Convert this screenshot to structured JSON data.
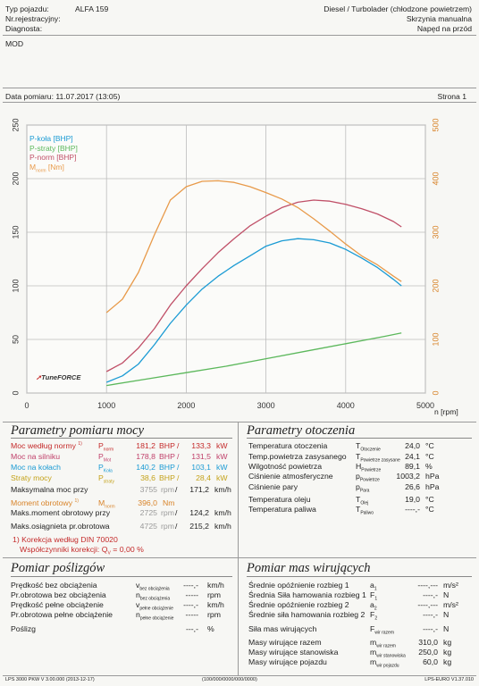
{
  "header": {
    "vehicle_type_label": "Typ pojazdu:",
    "vehicle_type": "ALFA 159",
    "registration_label": "Nr.rejestracyjny:",
    "diagnosis_label": "Diagnosta:",
    "engine": "Diesel / Turbolader (chłodzone powietrzem)",
    "gearbox": "Skrzynia manualna",
    "drive": "Napęd na przód",
    "note": "MOD",
    "date_label": "Data pomiaru: 11.07.2017 (13:05)",
    "page_label": "Strona 1"
  },
  "chart_data": {
    "type": "line",
    "x_unit_label": "n [rpm]",
    "xlim": [
      0,
      5000
    ],
    "x_ticks": [
      "0",
      "1000",
      "2000",
      "3000",
      "4000",
      "5000"
    ],
    "y_left_lim": [
      0,
      250
    ],
    "y_left_ticks": [
      "0",
      "50",
      "100",
      "150",
      "200",
      "250"
    ],
    "y_right_lim": [
      0,
      500
    ],
    "y_right_ticks": [
      "0",
      "100",
      "200",
      "300",
      "400",
      "500"
    ],
    "grid": true,
    "legend_position": "top-left",
    "brand": "TuneFORCE",
    "series": [
      {
        "name": "P-koła [BHP]",
        "axis": "left",
        "color": "#1b9bd4",
        "x": [
          1000,
          1200,
          1400,
          1600,
          1800,
          2000,
          2200,
          2400,
          2600,
          2800,
          3000,
          3200,
          3400,
          3600,
          3800,
          4000,
          4200,
          4400,
          4600,
          4700
        ],
        "y": [
          10,
          16,
          27,
          45,
          65,
          82,
          97,
          109,
          119,
          128,
          137,
          142,
          144,
          143,
          140,
          134,
          126,
          117,
          106,
          100
        ]
      },
      {
        "name": "P-straty [BHP]",
        "axis": "left",
        "color": "#5cb85c",
        "x": [
          1000,
          1500,
          2000,
          2500,
          3000,
          3500,
          4000,
          4500,
          4700
        ],
        "y": [
          7,
          13,
          19,
          25,
          32,
          39,
          46,
          53,
          56
        ]
      },
      {
        "name": "P-norm [BHP]",
        "axis": "left",
        "color": "#c05068",
        "x": [
          1000,
          1200,
          1400,
          1600,
          1800,
          2000,
          2200,
          2400,
          2600,
          2800,
          3000,
          3200,
          3400,
          3600,
          3800,
          4000,
          4200,
          4400,
          4600,
          4700
        ],
        "y": [
          20,
          28,
          42,
          60,
          82,
          100,
          116,
          131,
          144,
          156,
          165,
          173,
          178,
          180,
          179,
          176,
          172,
          167,
          160,
          155
        ]
      },
      {
        "name": "M",
        "name_sub": "norm",
        "name_unit": "[Nm]",
        "axis": "right",
        "color": "#e89a4a",
        "x": [
          1000,
          1200,
          1400,
          1600,
          1800,
          2000,
          2200,
          2400,
          2600,
          2800,
          3000,
          3200,
          3400,
          3600,
          3800,
          4000,
          4200,
          4400,
          4600,
          4700
        ],
        "y": [
          150,
          175,
          225,
          295,
          360,
          385,
          395,
          396,
          393,
          385,
          374,
          362,
          346,
          325,
          302,
          278,
          256,
          239,
          218,
          208
        ]
      }
    ]
  },
  "params_moc": {
    "title": "Parametry pomiaru mocy",
    "rows": [
      {
        "label": "Moc według normy",
        "sup": "1)",
        "sym": "P",
        "sub": "norm",
        "v1": "181,2",
        "u1": "BHP",
        "v2": "133,3",
        "u2": "kW",
        "color": "red"
      },
      {
        "label": "Moc na silniku",
        "sym": "P",
        "sub": "Mot",
        "v1": "178,8",
        "u1": "BHP",
        "v2": "131,5",
        "u2": "kW",
        "color": "pink"
      },
      {
        "label": "Moc na kołach",
        "sym": "P",
        "sub": "Koła",
        "v1": "140,2",
        "u1": "BHP",
        "v2": "103,1",
        "u2": "kW",
        "color": "blue"
      },
      {
        "label": "Straty mocy",
        "sym": "P",
        "sub": "straty",
        "v1": "38,6",
        "u1": "BHP",
        "v2": "28,4",
        "u2": "kW",
        "color": "gold"
      }
    ],
    "max_speed_label": "Maksymalna moc przy",
    "max_speed_rpm": "3755",
    "max_speed_rpm_unit": "rpm",
    "max_speed_kmh": "171,2",
    "max_speed_kmh_unit": "km/h",
    "torque_label": "Moment obrotowy",
    "torque_sup": "1)",
    "torque_sym": "M",
    "torque_sub": "norm",
    "torque_value": "396,0",
    "torque_unit": "Nm",
    "torque_speed_label": "Maks.moment obrotowy przy",
    "torque_speed_rpm": "2725",
    "torque_speed_kmh": "124,2",
    "maxv_label": "Maks.osiągnieta pr.obrotowa",
    "maxv_rpm": "4725",
    "maxv_kmh": "215,2",
    "corr_label": "1) Korekcja według DIN 70020",
    "corr_factor_label": "Współczynniki korekcji:",
    "corr_sym": "Q",
    "corr_sub": "V",
    "corr_value": "=   0,00 %",
    "unit_rpm": "rpm",
    "unit_kmh": "km/h"
  },
  "params_env": {
    "title": "Parametry otoczenia",
    "rows": [
      {
        "label": "Temperatura otoczenia",
        "sym": "T",
        "sub": "Otoczenie",
        "val": "24,0",
        "unit": "°C"
      },
      {
        "label": "Temp.powietrza zasysanego",
        "sym": "T",
        "sub": "Powietrze zasysane",
        "val": "24,1",
        "unit": "°C"
      },
      {
        "label": "Wilgotność powietrza",
        "sym": "H",
        "sub": "Powietrze",
        "val": "89,1",
        "unit": "%"
      },
      {
        "label": "Ciśnienie atmosferyczne",
        "sym": "p",
        "sub": "Powietrze",
        "val": "1003,2",
        "unit": "hPa"
      },
      {
        "label": "Ciśnienie pary",
        "sym": "p",
        "sub": "Para",
        "val": "26,6",
        "unit": "hPa"
      },
      {
        "label": "Temperatura oleju",
        "sym": "T",
        "sub": "Olej",
        "val": "19,0",
        "unit": "°C"
      },
      {
        "label": "Temperatura paliwa",
        "sym": "T",
        "sub": "Paliwo",
        "val": "----,-",
        "unit": "°C"
      }
    ]
  },
  "slip": {
    "title": "Pomiar poślizgów",
    "rows": [
      {
        "label": "Prędkość bez obciążenia",
        "sym": "v",
        "sub": "bez obciążenia",
        "val": "----,-",
        "unit": "km/h"
      },
      {
        "label": "Pr.obrotowa bez obciążenia",
        "sym": "n",
        "sub": "bez obciążenia",
        "val": "-----",
        "unit": "rpm"
      },
      {
        "label": "Prędkość pełne obciążenie",
        "sym": "v",
        "sub": "pełne obciążenie",
        "val": "----,-",
        "unit": "km/h"
      },
      {
        "label": "Pr.obrotowa pełne obciążenie",
        "sym": "n",
        "sub": "pełne obciążenie",
        "val": "-----",
        "unit": "rpm"
      }
    ],
    "slip_label": "Poślizg",
    "slip_val": "---,-",
    "slip_unit": "%"
  },
  "masses": {
    "title": "Pomiar mas wirujących",
    "rows": [
      {
        "label": "Średnie opóźnienie rozbieg 1",
        "sym": "a",
        "sub": "1",
        "val": "----,---",
        "unit": "m/s²"
      },
      {
        "label": "Średnia Siła hamowania rozbieg 1",
        "sym": "F",
        "sub": "1",
        "val": "----,-",
        "unit": "N"
      },
      {
        "label": "Średnie opóźnienie rozbieg 2",
        "sym": "a",
        "sub": "2",
        "val": "----,---",
        "unit": "m/s²"
      },
      {
        "label": "Średnie siła hamowania rozbieg 2",
        "sym": "F",
        "sub": "2",
        "val": "----,-",
        "unit": "N"
      },
      {
        "label": "Siła mas wirujących",
        "sym": "F",
        "sub": "wir razem",
        "val": "----,-",
        "unit": "N"
      },
      {
        "label": "Masy wirujące razem",
        "sym": "m",
        "sub": "wir razem",
        "val": "310,0",
        "unit": "kg"
      },
      {
        "label": "Masy wirujące stanowiska",
        "sym": "m",
        "sub": "wir stanowiska",
        "val": "250,0",
        "unit": "kg"
      },
      {
        "label": "Masy wirujące pojazdu",
        "sym": "m",
        "sub": "wir pojazdu",
        "val": "60,0",
        "unit": "kg"
      }
    ]
  },
  "footer": {
    "left": "LPS 3000 PKW V 3.00.000 (2013-12-17)",
    "center": "(100/000/0000/000/0000)",
    "right": "LPS-EURO V1.37.010"
  }
}
